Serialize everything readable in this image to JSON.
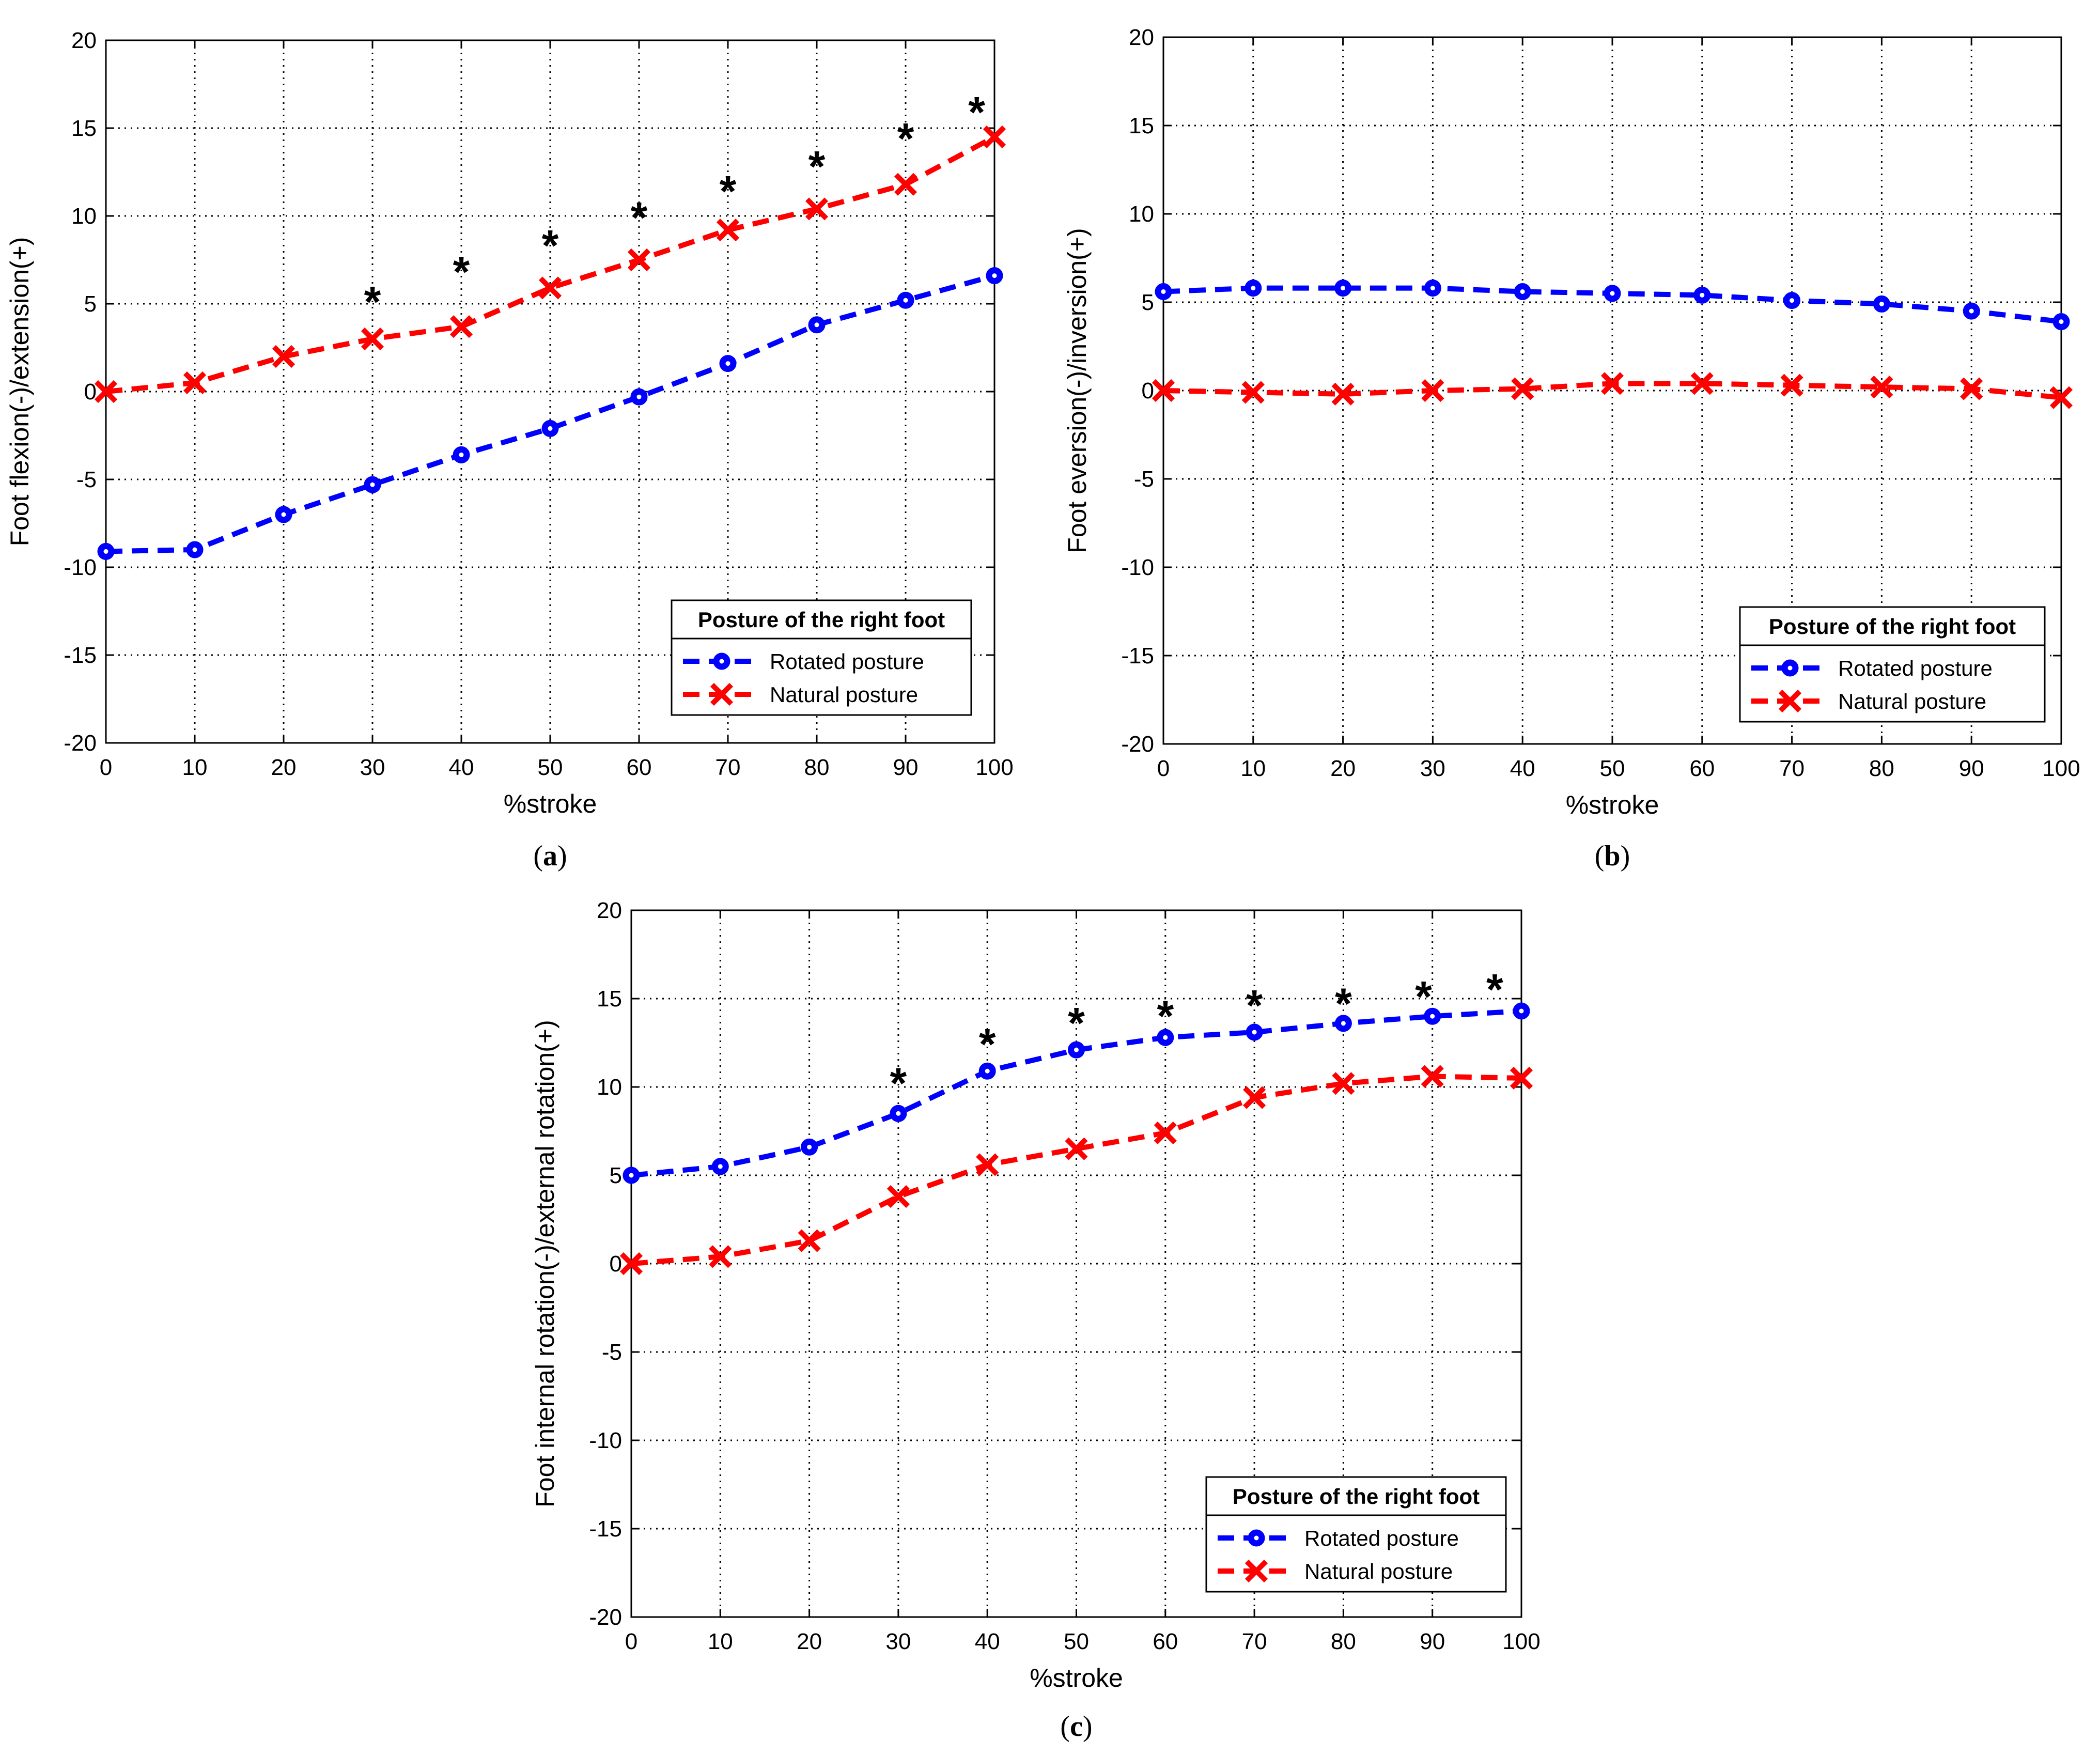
{
  "colors": {
    "rotated": "#0000ff",
    "natural": "#ff0000",
    "axis": "#000000"
  },
  "chart_data": [
    {
      "type": "line",
      "panel": "(a)",
      "panel_letter": "a",
      "xlabel": "%stroke",
      "ylabel": "Foot flexion(-)/extension(+)",
      "xlim": [
        0,
        100
      ],
      "ylim": [
        -20,
        20
      ],
      "xticks": [
        0,
        10,
        20,
        30,
        40,
        50,
        60,
        70,
        80,
        90,
        100
      ],
      "yticks": [
        -20,
        -15,
        -10,
        -5,
        0,
        5,
        10,
        15,
        20
      ],
      "grid": true,
      "x": [
        0,
        10,
        20,
        30,
        40,
        50,
        60,
        70,
        80,
        90,
        100
      ],
      "series": [
        {
          "name": "Rotated posture",
          "marker": "circle",
          "values": [
            -9.1,
            -9.0,
            -7.0,
            -5.3,
            -3.6,
            -2.1,
            -0.3,
            1.6,
            3.8,
            5.2,
            6.6
          ]
        },
        {
          "name": "Natural posture",
          "marker": "x",
          "values": [
            0.0,
            0.5,
            2.0,
            3.0,
            3.7,
            5.9,
            7.5,
            9.2,
            10.4,
            11.8,
            14.5
          ]
        }
      ],
      "significance": {
        "symbol": "*",
        "x": [
          30,
          40,
          50,
          60,
          70,
          80,
          90,
          98
        ],
        "y": [
          5.5,
          7.2,
          8.7,
          10.3,
          11.8,
          13.2,
          14.8,
          16.3
        ]
      },
      "legend": {
        "title": "Posture of the right foot",
        "location": "lower-right"
      }
    },
    {
      "type": "line",
      "panel": "(b)",
      "panel_letter": "b",
      "xlabel": "%stroke",
      "ylabel": "Foot eversion(-)/inversion(+)",
      "xlim": [
        0,
        100
      ],
      "ylim": [
        -20,
        20
      ],
      "xticks": [
        0,
        10,
        20,
        30,
        40,
        50,
        60,
        70,
        80,
        90,
        100
      ],
      "yticks": [
        -20,
        -15,
        -10,
        -5,
        0,
        5,
        10,
        15,
        20
      ],
      "grid": true,
      "x": [
        0,
        10,
        20,
        30,
        40,
        50,
        60,
        70,
        80,
        90,
        100
      ],
      "series": [
        {
          "name": "Rotated posture",
          "marker": "circle",
          "values": [
            5.6,
            5.8,
            5.8,
            5.8,
            5.6,
            5.5,
            5.4,
            5.1,
            4.9,
            4.5,
            3.9
          ]
        },
        {
          "name": "Natural posture",
          "marker": "x",
          "values": [
            0.0,
            -0.1,
            -0.2,
            0.0,
            0.1,
            0.4,
            0.4,
            0.3,
            0.2,
            0.1,
            -0.4
          ]
        }
      ],
      "significance": {
        "symbol": "*",
        "x": [],
        "y": []
      },
      "legend": {
        "title": "Posture of the right foot",
        "location": "lower-right"
      }
    },
    {
      "type": "line",
      "panel": "(c)",
      "panel_letter": "c",
      "xlabel": "%stroke",
      "ylabel": "Foot internal rotation(-)/external rotation(+)",
      "xlim": [
        0,
        100
      ],
      "ylim": [
        -20,
        20
      ],
      "xticks": [
        0,
        10,
        20,
        30,
        40,
        50,
        60,
        70,
        80,
        90,
        100
      ],
      "yticks": [
        -20,
        -15,
        -10,
        -5,
        0,
        5,
        10,
        15,
        20
      ],
      "grid": true,
      "x": [
        0,
        10,
        20,
        30,
        40,
        50,
        60,
        70,
        80,
        90,
        100
      ],
      "series": [
        {
          "name": "Rotated posture",
          "marker": "circle",
          "values": [
            5.0,
            5.5,
            6.6,
            8.5,
            10.9,
            12.1,
            12.8,
            13.1,
            13.6,
            14.0,
            14.3
          ]
        },
        {
          "name": "Natural posture",
          "marker": "x",
          "values": [
            0.0,
            0.4,
            1.3,
            3.8,
            5.6,
            6.5,
            7.4,
            9.4,
            10.2,
            10.6,
            10.5
          ]
        }
      ],
      "significance": {
        "symbol": "*",
        "x": [
          30,
          40,
          50,
          60,
          70,
          80,
          89,
          97
        ],
        "y": [
          10.6,
          12.8,
          14.0,
          14.4,
          15.0,
          15.1,
          15.5,
          15.9
        ]
      },
      "legend": {
        "title": "Posture of the right foot",
        "location": "lower-right"
      }
    }
  ]
}
